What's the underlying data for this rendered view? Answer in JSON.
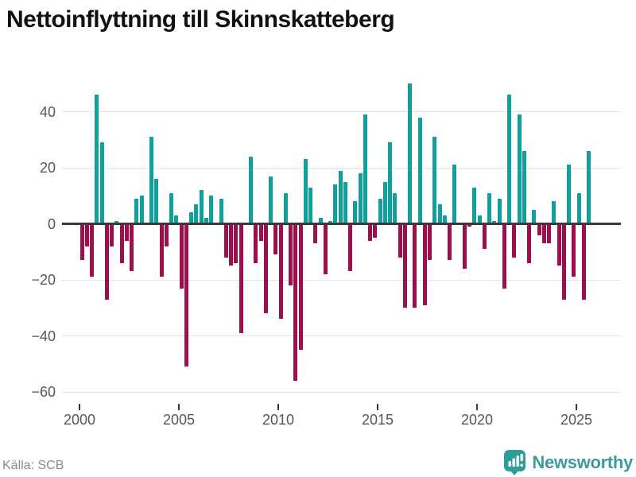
{
  "title": "Nettoinflyttning till Skinnskatteberg",
  "footer": {
    "source": "Källa: SCB",
    "brand": "Newsworthy"
  },
  "colors": {
    "positive": "#12A09E",
    "negative": "#9E0D4D",
    "grid": "#E4E4E4",
    "zero_line": "#3A3A3A",
    "axis_text": "#575757",
    "source_text": "#8A8A8A",
    "brand_text": "#3D9B99",
    "brand_icon": "#2F9E9B"
  },
  "chart_data": {
    "type": "bar",
    "title": "Nettoinflyttning till Skinnskatteberg",
    "xlabel": "",
    "ylabel": "",
    "frequency": "quarterly",
    "start_year": 2000,
    "ylim": [
      -60,
      50
    ],
    "yticks": [
      40,
      20,
      0,
      -20,
      -40,
      -60
    ],
    "xticks": [
      2000,
      2005,
      2010,
      2015,
      2020,
      2025
    ],
    "grid": true,
    "legend": "none",
    "series": [
      {
        "name": "Nettoinflyttning",
        "values": [
          -13,
          -8,
          -19,
          46,
          29,
          -27,
          -8,
          1,
          -14,
          -6,
          -17,
          9,
          10,
          0,
          31,
          16,
          -19,
          -8,
          11,
          3,
          -23,
          -51,
          4,
          7,
          12,
          2,
          10,
          0,
          9,
          -12,
          -15,
          -14,
          -39,
          0,
          24,
          -14,
          -6,
          -32,
          17,
          -11,
          -34,
          11,
          -22,
          -56,
          -45,
          23,
          13,
          -7,
          2,
          -18,
          1,
          14,
          19,
          15,
          -17,
          8,
          18,
          39,
          -6,
          -5,
          9,
          15,
          29,
          11,
          -12,
          -30,
          50,
          -30,
          38,
          -29,
          -13,
          31,
          7,
          3,
          -13,
          21,
          0,
          -16,
          -1,
          13,
          3,
          -9,
          11,
          1,
          9,
          -23,
          46,
          -12,
          39,
          26,
          -14,
          5,
          -4,
          -7,
          -7,
          8,
          -15,
          -27,
          21,
          -19,
          11,
          -27,
          26
        ]
      }
    ]
  }
}
